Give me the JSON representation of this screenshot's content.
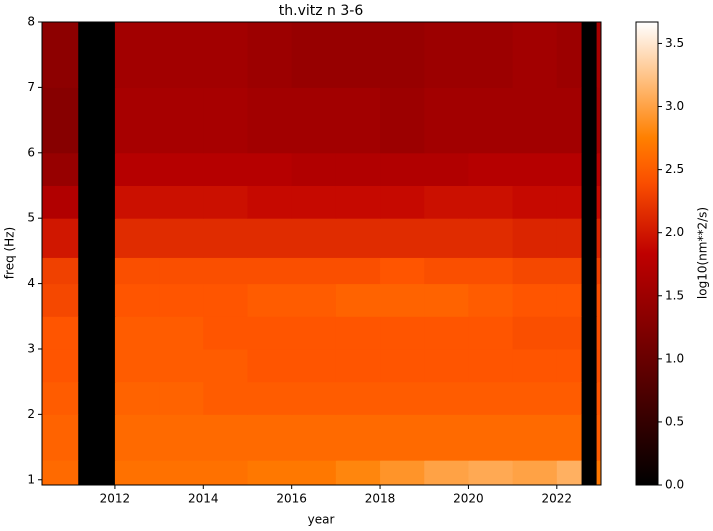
{
  "chart_data": {
    "type": "heatmap",
    "title": "th.vitz n 3-6",
    "xlabel": "year",
    "ylabel": "freq (Hz)",
    "colorbar_label": "log10(nm**2/s)",
    "cmap": "gist_heat",
    "xbins": [
      2010.35,
      2011.17,
      2012,
      2013,
      2014,
      2015,
      2016,
      2017,
      2018,
      2019,
      2020,
      2021,
      2022,
      2022.56,
      2022.9,
      2023.0
    ],
    "ybins": [
      0.92,
      1.3,
      2,
      2.5,
      3,
      3.5,
      4,
      4.4,
      5,
      5.5,
      6,
      7,
      8
    ],
    "z": [
      [
        2.6,
        0,
        2.65,
        2.65,
        2.65,
        2.7,
        2.7,
        2.8,
        2.9,
        3.0,
        3.05,
        3.0,
        3.1,
        0,
        2.7
      ],
      [
        2.55,
        0,
        2.6,
        2.6,
        2.6,
        2.6,
        2.6,
        2.6,
        2.6,
        2.6,
        2.6,
        2.6,
        2.6,
        0,
        2.5
      ],
      [
        2.5,
        0,
        2.55,
        2.55,
        2.5,
        2.5,
        2.5,
        2.5,
        2.5,
        2.5,
        2.5,
        2.5,
        2.5,
        0,
        2.45
      ],
      [
        2.45,
        0,
        2.5,
        2.5,
        2.5,
        2.45,
        2.45,
        2.45,
        2.45,
        2.45,
        2.45,
        2.45,
        2.45,
        0,
        2.4
      ],
      [
        2.45,
        0,
        2.5,
        2.5,
        2.45,
        2.45,
        2.45,
        2.45,
        2.45,
        2.45,
        2.45,
        2.4,
        2.4,
        0,
        2.4
      ],
      [
        2.35,
        0,
        2.45,
        2.45,
        2.45,
        2.5,
        2.5,
        2.55,
        2.55,
        2.55,
        2.5,
        2.45,
        2.45,
        0,
        2.4
      ],
      [
        2.3,
        0,
        2.4,
        2.4,
        2.4,
        2.4,
        2.4,
        2.4,
        2.45,
        2.4,
        2.4,
        2.35,
        2.35,
        0,
        2.3
      ],
      [
        2.0,
        0,
        2.15,
        2.15,
        2.15,
        2.15,
        2.15,
        2.15,
        2.15,
        2.15,
        2.15,
        2.1,
        2.1,
        0,
        2.1
      ],
      [
        1.7,
        0,
        1.95,
        1.95,
        1.95,
        1.9,
        1.9,
        1.9,
        1.9,
        1.95,
        1.95,
        1.9,
        1.9,
        0,
        1.9
      ],
      [
        1.45,
        0,
        1.75,
        1.75,
        1.75,
        1.75,
        1.7,
        1.7,
        1.7,
        1.7,
        1.75,
        1.75,
        1.75,
        0,
        1.75
      ],
      [
        1.3,
        0,
        1.6,
        1.6,
        1.6,
        1.55,
        1.55,
        1.55,
        1.5,
        1.55,
        1.55,
        1.55,
        1.55,
        0,
        1.55
      ],
      [
        1.35,
        0,
        1.55,
        1.55,
        1.55,
        1.5,
        1.45,
        1.45,
        1.45,
        1.5,
        1.5,
        1.55,
        1.5,
        0,
        1.6
      ]
    ],
    "xlim": [
      2010.35,
      2023.0
    ],
    "ylim": [
      0.92,
      8
    ],
    "xticks": [
      2012,
      2014,
      2016,
      2018,
      2020,
      2022
    ],
    "yticks": [
      1,
      2,
      3,
      4,
      5,
      6,
      7,
      8
    ],
    "clim": [
      0,
      3.67
    ],
    "cticks": [
      {
        "value": 0,
        "label": "0.0"
      },
      0.5,
      {
        "value": 1,
        "label": "1.0"
      },
      1.5,
      {
        "value": 2,
        "label": "2.0"
      },
      2.5,
      {
        "value": 3,
        "label": "3.0"
      },
      3.5
    ]
  }
}
